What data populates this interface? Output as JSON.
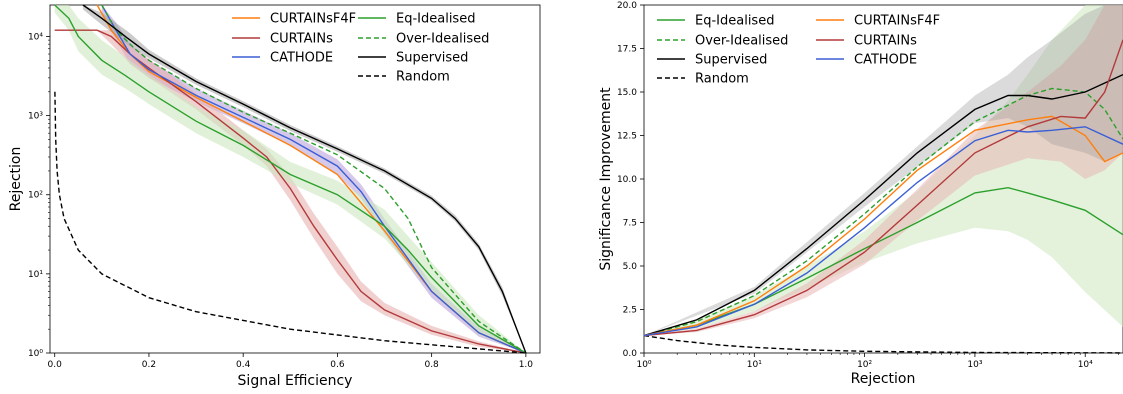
{
  "colors": {
    "orange": "#ff7f0e",
    "red": "#b33a3a",
    "blue": "#3b5fd6",
    "green": "#2ca02c",
    "black": "#000000",
    "cathode_band": "#b9a3d8",
    "red_band": "#e8b0b0",
    "green_band": "#cde8c0",
    "grey_band": "#999999"
  },
  "chart_data": [
    {
      "type": "line",
      "xlabel": "Signal Efficiency",
      "ylabel": "Rejection",
      "xlim": [
        0,
        1
      ],
      "ylim": [
        1,
        25000
      ],
      "yscale": "log",
      "xticks": [
        "0.0",
        "0.2",
        "0.4",
        "0.6",
        "0.8",
        "1.0"
      ],
      "yticks": [
        "10⁰",
        "10¹",
        "10²",
        "10³",
        "10⁴"
      ],
      "grid": false,
      "legend": "top-right",
      "series": [
        {
          "name": "CURTAINsF4F",
          "color": "orange",
          "style": "solid",
          "x": [
            0.09,
            0.12,
            0.16,
            0.2,
            0.3,
            0.4,
            0.5,
            0.6,
            0.7,
            0.8,
            0.9,
            1.0
          ],
          "y": [
            25000,
            12000,
            6000,
            3600,
            1700,
            850,
            420,
            180,
            35,
            6,
            1.8,
            1
          ]
        },
        {
          "name": "CURTAINs",
          "color": "red",
          "style": "solid",
          "x": [
            0.0,
            0.09,
            0.12,
            0.16,
            0.2,
            0.3,
            0.4,
            0.45,
            0.5,
            0.55,
            0.6,
            0.65,
            0.7,
            0.8,
            0.9,
            1.0
          ],
          "y": [
            12000,
            12000,
            10000,
            6000,
            4000,
            1500,
            520,
            300,
            120,
            40,
            15,
            6,
            3.5,
            1.9,
            1.3,
            1
          ]
        },
        {
          "name": "CATHODE",
          "color": "blue",
          "style": "solid",
          "x": [
            0.1,
            0.13,
            0.16,
            0.2,
            0.3,
            0.4,
            0.5,
            0.6,
            0.65,
            0.7,
            0.8,
            0.9,
            1.0
          ],
          "y": [
            25000,
            12000,
            6000,
            3800,
            1800,
            950,
            500,
            230,
            110,
            40,
            6,
            1.8,
            1
          ]
        },
        {
          "name": "Eq-Idealised",
          "color": "green",
          "style": "solid",
          "x": [
            0.0,
            0.03,
            0.05,
            0.1,
            0.15,
            0.2,
            0.3,
            0.4,
            0.5,
            0.6,
            0.7,
            0.75,
            0.8,
            0.9,
            1.0
          ],
          "y": [
            25000,
            17000,
            10000,
            5000,
            3200,
            2000,
            850,
            420,
            180,
            100,
            40,
            20,
            9,
            2.2,
            1
          ]
        },
        {
          "name": "Over-Idealised",
          "color": "green",
          "style": "dashed",
          "x": [
            0.1,
            0.13,
            0.17,
            0.2,
            0.3,
            0.4,
            0.5,
            0.6,
            0.7,
            0.75,
            0.8,
            0.9,
            1.0
          ],
          "y": [
            25000,
            12000,
            7000,
            5000,
            2200,
            1100,
            600,
            320,
            120,
            50,
            12,
            2.5,
            1
          ]
        },
        {
          "name": "Supervised",
          "color": "black",
          "style": "solid",
          "x": [
            0.06,
            0.1,
            0.16,
            0.2,
            0.3,
            0.4,
            0.5,
            0.6,
            0.7,
            0.8,
            0.85,
            0.9,
            0.95,
            1.0
          ],
          "y": [
            25000,
            17000,
            9000,
            6000,
            2700,
            1400,
            700,
            380,
            200,
            90,
            50,
            22,
            6,
            1
          ]
        },
        {
          "name": "Random",
          "color": "black",
          "style": "dashed",
          "x": [
            0.0005,
            0.002,
            0.005,
            0.01,
            0.02,
            0.05,
            0.1,
            0.2,
            0.3,
            0.5,
            0.7,
            1.0
          ],
          "y": [
            2000,
            500,
            200,
            100,
            50,
            20,
            10,
            5,
            3.33,
            2,
            1.43,
            1
          ]
        }
      ],
      "bands": [
        {
          "color": "cathode_band",
          "opacity": 0.6,
          "x": [
            0.1,
            0.13,
            0.16,
            0.2,
            0.3,
            0.4,
            0.5,
            0.6,
            0.65,
            0.7,
            0.8,
            0.9,
            1.0
          ],
          "lower": [
            20000,
            9000,
            4500,
            3000,
            1500,
            800,
            420,
            180,
            90,
            32,
            5,
            1.6,
            1
          ],
          "upper": [
            25000,
            15000,
            8000,
            5000,
            2200,
            1150,
            600,
            280,
            135,
            50,
            7.5,
            2.1,
            1
          ]
        },
        {
          "color": "red_band",
          "opacity": 0.6,
          "x": [
            0.09,
            0.12,
            0.16,
            0.2,
            0.3,
            0.4,
            0.45,
            0.5,
            0.55,
            0.6,
            0.65,
            0.7,
            0.8,
            0.9,
            1.0
          ],
          "lower": [
            12000,
            8000,
            4500,
            3000,
            1200,
            420,
            230,
            85,
            28,
            10,
            4.5,
            3,
            1.7,
            1.2,
            1
          ],
          "upper": [
            12000,
            12000,
            7500,
            5200,
            1900,
            650,
            380,
            170,
            58,
            22,
            8,
            4.3,
            2.2,
            1.4,
            1
          ]
        },
        {
          "color": "green_band",
          "opacity": 0.6,
          "x": [
            0.0,
            0.03,
            0.05,
            0.1,
            0.15,
            0.2,
            0.3,
            0.4,
            0.5,
            0.6,
            0.7,
            0.75,
            0.8,
            0.9,
            1.0
          ],
          "lower": [
            20000,
            12000,
            6500,
            3300,
            2200,
            1400,
            600,
            300,
            140,
            75,
            28,
            13,
            6,
            1.7,
            1
          ],
          "upper": [
            25000,
            25000,
            17000,
            9000,
            5500,
            3300,
            1300,
            650,
            260,
            150,
            65,
            30,
            14,
            3,
            1
          ]
        },
        {
          "color": "grey_band",
          "opacity": 0.5,
          "x": [
            0.06,
            0.1,
            0.16,
            0.2,
            0.3,
            0.4,
            0.5,
            0.6,
            0.7,
            0.8,
            0.85,
            0.9,
            0.95,
            1.0
          ],
          "lower": [
            22000,
            14000,
            7500,
            5300,
            2450,
            1280,
            640,
            350,
            185,
            84,
            46,
            20,
            5.3,
            1
          ],
          "upper": [
            25000,
            20000,
            11000,
            6800,
            2950,
            1520,
            760,
            410,
            215,
            97,
            55,
            24,
            6.8,
            1
          ]
        }
      ]
    },
    {
      "type": "line",
      "xlabel": "Rejection",
      "ylabel": "Significance Improvement",
      "xlim": [
        1,
        22000
      ],
      "xscale": "log",
      "ylim": [
        0,
        20
      ],
      "xticks": [
        "10⁰",
        "10¹",
        "10²",
        "10³",
        "10⁴"
      ],
      "yticks": [
        "0.0",
        "2.5",
        "5.0",
        "7.5",
        "10.0",
        "12.5",
        "15.0",
        "17.5",
        "20.0"
      ],
      "grid": false,
      "legend": "top-left",
      "series": [
        {
          "name": "Eq-Idealised",
          "color": "green",
          "style": "solid",
          "x": [
            1,
            3,
            10,
            30,
            100,
            300,
            1000,
            2000,
            3000,
            5000,
            10000,
            22000
          ],
          "y": [
            1,
            1.6,
            2.8,
            4.3,
            6.0,
            7.5,
            9.2,
            9.5,
            9.2,
            8.8,
            8.2,
            6.8
          ]
        },
        {
          "name": "Over-Idealised",
          "color": "green",
          "style": "dashed",
          "x": [
            1,
            3,
            10,
            30,
            100,
            300,
            1000,
            3000,
            5000,
            10000,
            15000,
            22000
          ],
          "y": [
            1,
            1.8,
            3.3,
            5.3,
            8.0,
            10.7,
            13.3,
            14.8,
            15.2,
            15.0,
            14.0,
            12.3
          ]
        },
        {
          "name": "Supervised",
          "color": "black",
          "style": "solid",
          "x": [
            1,
            3,
            10,
            30,
            100,
            300,
            1000,
            2000,
            3000,
            5000,
            10000,
            22000
          ],
          "y": [
            1,
            1.9,
            3.6,
            6.0,
            8.8,
            11.5,
            14.0,
            14.8,
            14.8,
            14.6,
            15.0,
            16.0
          ]
        },
        {
          "name": "Random",
          "color": "black",
          "style": "dashed",
          "x": [
            1,
            2,
            5,
            10,
            30,
            100,
            1000,
            10000,
            22000
          ],
          "y": [
            1,
            0.71,
            0.45,
            0.32,
            0.18,
            0.1,
            0.03,
            0.01,
            0.007
          ]
        },
        {
          "name": "CURTAINsF4F",
          "color": "orange",
          "style": "solid",
          "x": [
            1,
            3,
            10,
            30,
            100,
            300,
            1000,
            3000,
            5000,
            10000,
            15000,
            22000
          ],
          "y": [
            1,
            1.6,
            3.0,
            5.0,
            7.7,
            10.5,
            12.8,
            13.4,
            13.6,
            12.5,
            11.0,
            11.5
          ]
        },
        {
          "name": "CURTAINs",
          "color": "red",
          "style": "solid",
          "x": [
            1,
            3,
            10,
            30,
            100,
            300,
            1000,
            3000,
            6000,
            10000,
            15000,
            22000
          ],
          "y": [
            1,
            1.3,
            2.2,
            3.6,
            5.8,
            8.5,
            11.5,
            13.0,
            13.6,
            13.5,
            15.0,
            18.0
          ]
        },
        {
          "name": "CATHODE",
          "color": "blue",
          "style": "solid",
          "x": [
            1,
            3,
            10,
            30,
            100,
            300,
            1000,
            2000,
            3000,
            5000,
            10000,
            22000
          ],
          "y": [
            1,
            1.5,
            2.8,
            4.6,
            7.2,
            9.8,
            12.2,
            12.8,
            12.7,
            12.8,
            13.0,
            12.0
          ]
        }
      ],
      "bands": [
        {
          "color": "green_band",
          "opacity": 0.55,
          "x": [
            1,
            3,
            10,
            30,
            100,
            300,
            1000,
            2000,
            3000,
            5000,
            10000,
            22000
          ],
          "lower": [
            1,
            1.4,
            2.4,
            3.7,
            5.2,
            6.3,
            7.2,
            7.0,
            6.5,
            5.5,
            3.5,
            1.5
          ],
          "upper": [
            1,
            1.9,
            3.3,
            5.0,
            7.0,
            9.3,
            12.5,
            14.5,
            16,
            18,
            20,
            20
          ]
        },
        {
          "color": "red_band",
          "opacity": 0.5,
          "x": [
            1,
            3,
            10,
            30,
            100,
            300,
            1000,
            3000,
            6000,
            10000,
            15000,
            22000
          ],
          "lower": [
            1,
            1.2,
            2.0,
            3.2,
            5.1,
            7.6,
            10.2,
            11.2,
            11.0,
            10.0,
            10.5,
            11.5
          ],
          "upper": [
            1,
            1.4,
            2.4,
            4.0,
            6.5,
            9.4,
            12.8,
            15.0,
            16.5,
            18,
            20,
            20
          ]
        },
        {
          "color": "grey_band",
          "opacity": 0.35,
          "x": [
            1,
            10,
            100,
            1000,
            2000,
            3000,
            5000,
            10000,
            15000,
            22000
          ],
          "lower": [
            1,
            3.4,
            8.4,
            13.2,
            13.5,
            13.0,
            12.0,
            11.5,
            11.0,
            11.5
          ],
          "upper": [
            1,
            3.8,
            9.2,
            14.8,
            16.0,
            17.0,
            18.0,
            19.5,
            20,
            20
          ]
        }
      ]
    }
  ]
}
